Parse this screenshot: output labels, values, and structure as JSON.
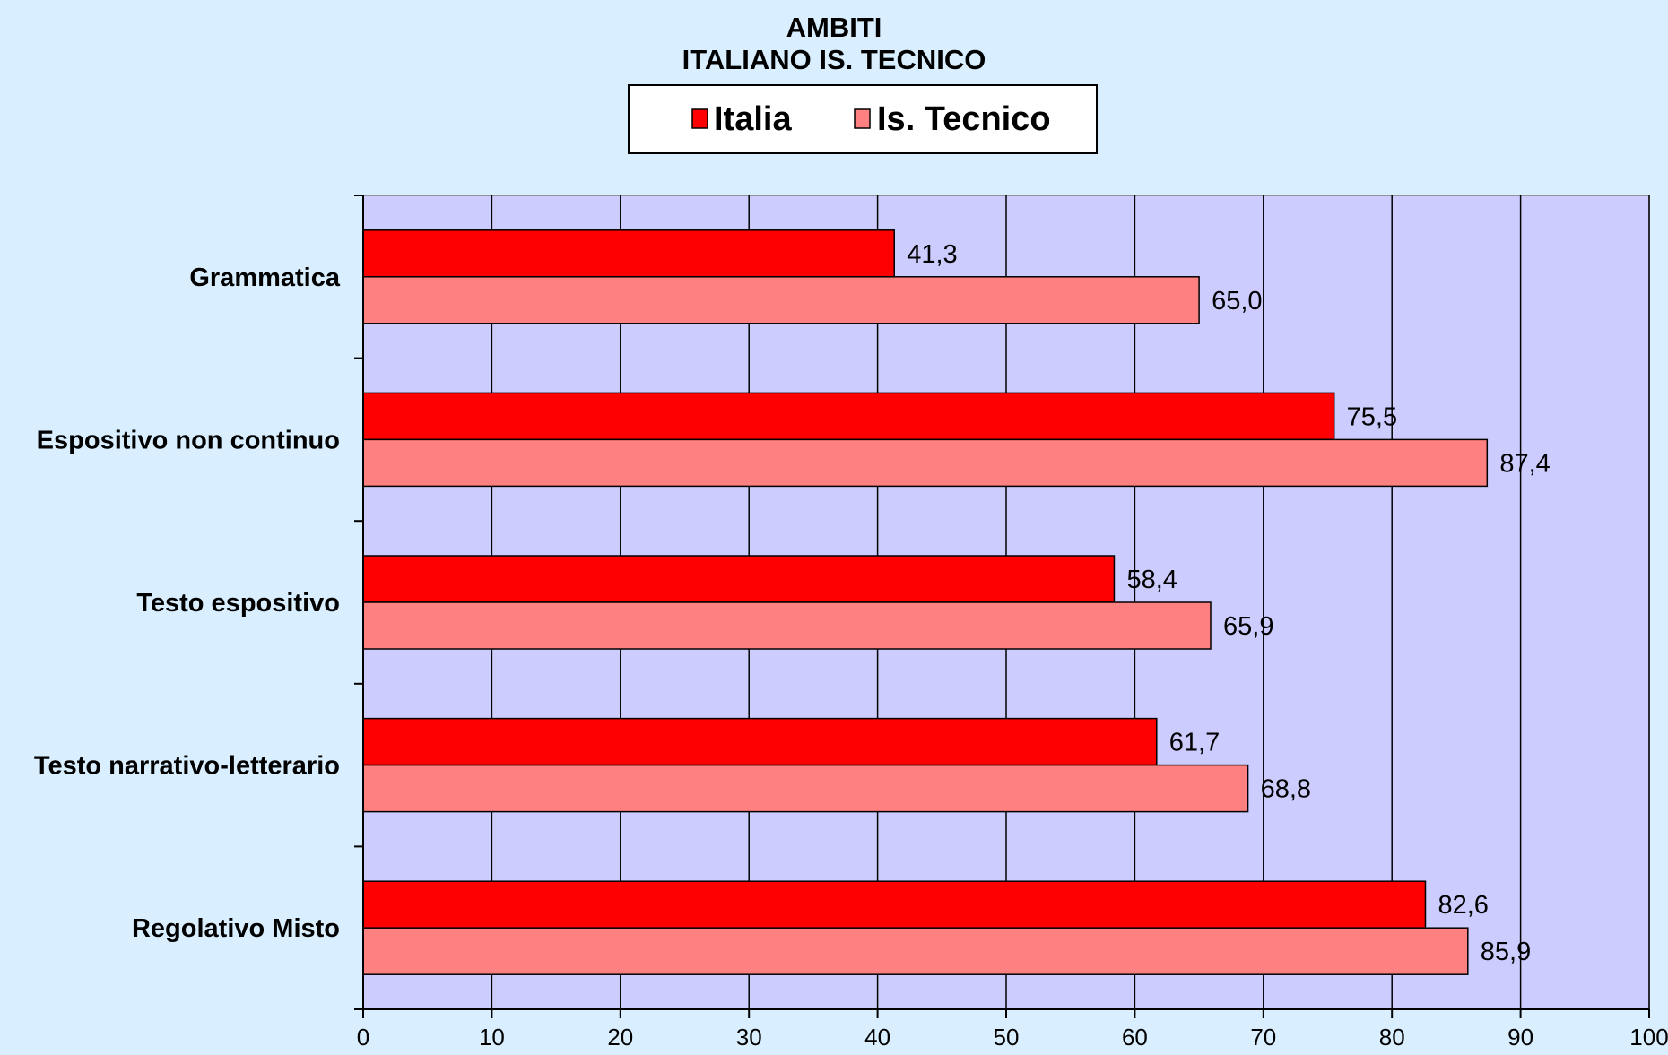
{
  "chart_data": {
    "type": "bar",
    "orientation": "horizontal",
    "title": "AMBITI",
    "subtitle": "ITALIANO IS. TECNICO",
    "categories": [
      "Grammatica",
      "Espositivo non continuo",
      "Testo espositivo",
      "Testo narrativo-letterario",
      "Regolativo Misto"
    ],
    "series": [
      {
        "name": "Italia",
        "color": "#ff0000",
        "values": [
          41.3,
          75.5,
          58.4,
          61.7,
          82.6
        ],
        "labels": [
          "41,3",
          "75,5",
          "58,4",
          "61,7",
          "82,6"
        ]
      },
      {
        "name": "Is. Tecnico",
        "color": "#ff8080",
        "values": [
          65.0,
          87.4,
          65.9,
          68.8,
          85.9
        ],
        "labels": [
          "65,0",
          "87,4",
          "65,9",
          "68,8",
          "85,9"
        ]
      }
    ],
    "xlim": [
      0,
      100
    ],
    "xticks": [
      0,
      10,
      20,
      30,
      40,
      50,
      60,
      70,
      80,
      90,
      100
    ],
    "xlabel": "",
    "ylabel": "",
    "grid": true,
    "plot_background": "#ccccff",
    "legend_position": "top-center"
  }
}
